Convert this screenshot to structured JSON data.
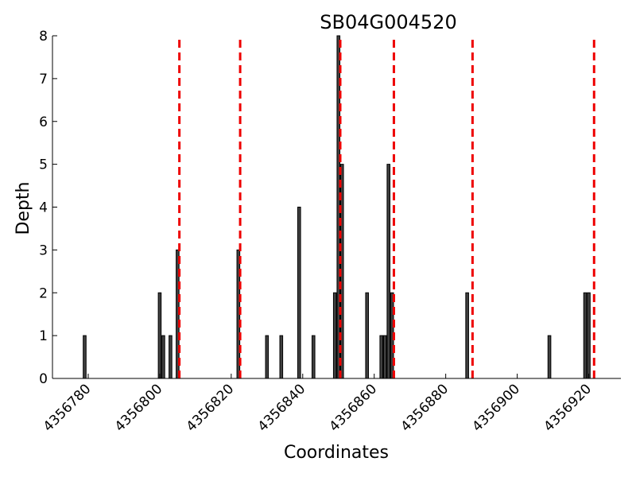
{
  "chart_data": {
    "type": "bar",
    "title": "SB04G004520",
    "xlabel": "Coordinates",
    "ylabel": "Depth",
    "xlim": [
      4356770,
      4356929
    ],
    "ylim": [
      0,
      8
    ],
    "xticks": [
      4356780,
      4356800,
      4356820,
      4356840,
      4356860,
      4356880,
      4356900,
      4356920
    ],
    "yticks": [
      0,
      1,
      2,
      3,
      4,
      5,
      6,
      7,
      8
    ],
    "grid": false,
    "legend": "none",
    "bar_color": "#404040",
    "series": [
      {
        "x": [
          4356779,
          4356800,
          4356801,
          4356803,
          4356805,
          4356822,
          4356830,
          4356834,
          4356839,
          4356843,
          4356849,
          4356850,
          4356851,
          4356858,
          4356862,
          4356863,
          4356864,
          4356865,
          4356886,
          4356909,
          4356919,
          4356920
        ],
        "values": [
          1,
          2,
          1,
          1,
          3,
          3,
          1,
          1,
          4,
          1,
          2,
          8,
          5,
          2,
          1,
          1,
          5,
          2,
          2,
          1,
          2,
          2
        ]
      }
    ],
    "vlines": {
      "color": "#ee0000",
      "style": "dashed",
      "x": [
        4356805.5,
        4356822.5,
        4356850.5,
        4356865.5,
        4356887.5,
        4356921.5
      ]
    }
  }
}
